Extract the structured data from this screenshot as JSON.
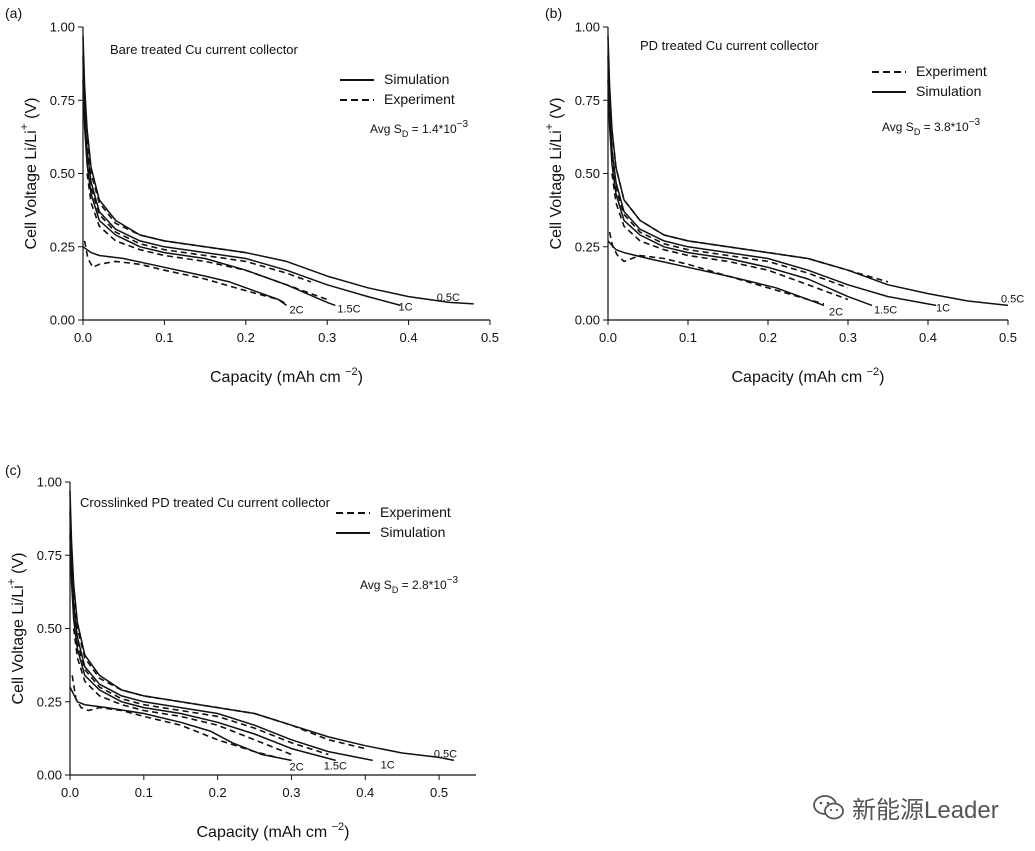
{
  "colors": {
    "line": "#111111",
    "watermark": "#555555"
  },
  "watermark": {
    "text": "新能源Leader",
    "icon": "wechat-icon"
  },
  "chart_data": [
    {
      "panel_label": "(a)",
      "type": "line",
      "title": "Bare treated Cu current collector",
      "xlabel": "Capacity (mAh cm",
      "xlabel_sup": "−2",
      "xlabel_end": ")",
      "ylabel": "Cell Voltage Li/Li",
      "ylabel_sup": "+",
      "ylabel_end": " (V)",
      "xlim": [
        0,
        0.5
      ],
      "ylim": [
        0,
        1.0
      ],
      "xticks": [
        "0.0",
        "0.1",
        "0.2",
        "0.3",
        "0.4",
        "0.5"
      ],
      "yticks": [
        "0.00",
        "0.25",
        "0.50",
        "0.75",
        "1.00"
      ],
      "legend": [
        {
          "name": "Simulation",
          "style": "solid"
        },
        {
          "name": "Experiment",
          "style": "dashed"
        }
      ],
      "annotation": {
        "prefix": "Avg S",
        "sub": "D",
        "mid": " = 1.4*10",
        "sup": "−3"
      },
      "series": [
        {
          "name": "0.5C simulation",
          "style": "solid",
          "label": "0.5C",
          "x": [
            0,
            0.002,
            0.005,
            0.01,
            0.02,
            0.04,
            0.07,
            0.1,
            0.15,
            0.2,
            0.25,
            0.3,
            0.35,
            0.4,
            0.45,
            0.48
          ],
          "y": [
            0.97,
            0.8,
            0.65,
            0.52,
            0.41,
            0.34,
            0.29,
            0.27,
            0.25,
            0.23,
            0.2,
            0.15,
            0.11,
            0.08,
            0.06,
            0.055
          ]
        },
        {
          "name": "0.5C experiment",
          "style": "dashed",
          "x": [
            0.005,
            0.01,
            0.02,
            0.04,
            0.07,
            0.1,
            0.15,
            0.2
          ],
          "y": [
            0.62,
            0.5,
            0.4,
            0.33,
            0.29,
            0.27,
            0.25,
            0.23
          ]
        },
        {
          "name": "1C simulation",
          "style": "solid",
          "label": "1C",
          "x": [
            0,
            0.002,
            0.005,
            0.01,
            0.02,
            0.04,
            0.07,
            0.1,
            0.15,
            0.2,
            0.25,
            0.3,
            0.35,
            0.39
          ],
          "y": [
            0.9,
            0.72,
            0.58,
            0.47,
            0.37,
            0.31,
            0.27,
            0.25,
            0.23,
            0.21,
            0.17,
            0.12,
            0.08,
            0.05
          ]
        },
        {
          "name": "1C experiment",
          "style": "dashed",
          "x": [
            0.005,
            0.01,
            0.02,
            0.04,
            0.07,
            0.1,
            0.15,
            0.2,
            0.25,
            0.28
          ],
          "y": [
            0.55,
            0.45,
            0.36,
            0.3,
            0.26,
            0.24,
            0.22,
            0.2,
            0.16,
            0.13
          ]
        },
        {
          "name": "1.5C simulation",
          "style": "solid",
          "label": "1.5C",
          "x": [
            0,
            0.002,
            0.005,
            0.01,
            0.02,
            0.04,
            0.07,
            0.1,
            0.15,
            0.2,
            0.25,
            0.3,
            0.31
          ],
          "y": [
            0.82,
            0.66,
            0.53,
            0.43,
            0.34,
            0.29,
            0.25,
            0.23,
            0.21,
            0.17,
            0.12,
            0.06,
            0.05
          ]
        },
        {
          "name": "1.5C experiment",
          "style": "dashed",
          "x": [
            0.005,
            0.01,
            0.02,
            0.04,
            0.07,
            0.1,
            0.15,
            0.2,
            0.25,
            0.3
          ],
          "y": [
            0.5,
            0.4,
            0.32,
            0.27,
            0.24,
            0.22,
            0.2,
            0.17,
            0.12,
            0.07
          ]
        },
        {
          "name": "2C simulation",
          "style": "solid",
          "label": "2C",
          "x": [
            0,
            0.01,
            0.02,
            0.05,
            0.1,
            0.15,
            0.18,
            0.21,
            0.24,
            0.25
          ],
          "y": [
            0.25,
            0.23,
            0.22,
            0.21,
            0.18,
            0.15,
            0.13,
            0.1,
            0.07,
            0.05
          ]
        },
        {
          "name": "2C experiment",
          "style": "dashed",
          "x": [
            0.002,
            0.006,
            0.012,
            0.02,
            0.04,
            0.07,
            0.1,
            0.15,
            0.2,
            0.24,
            0.25
          ],
          "y": [
            0.27,
            0.21,
            0.18,
            0.19,
            0.2,
            0.19,
            0.17,
            0.14,
            0.1,
            0.07,
            0.055
          ]
        }
      ]
    },
    {
      "panel_label": "(b)",
      "type": "line",
      "title": "PD treated Cu current collector",
      "xlabel": "Capacity (mAh cm",
      "xlabel_sup": "−2",
      "xlabel_end": ")",
      "ylabel": "Cell Voltage Li/Li",
      "ylabel_sup": "+",
      "ylabel_end": " (V)",
      "xlim": [
        0,
        0.5
      ],
      "ylim": [
        0,
        1.0
      ],
      "xticks": [
        "0.0",
        "0.1",
        "0.2",
        "0.3",
        "0.4",
        "0.5"
      ],
      "yticks": [
        "0.00",
        "0.25",
        "0.50",
        "0.75",
        "1.00"
      ],
      "legend": [
        {
          "name": "Experiment",
          "style": "dashed"
        },
        {
          "name": "Simulation",
          "style": "solid"
        }
      ],
      "annotation": {
        "prefix": "Avg S",
        "sub": "D",
        "mid": " = 3.8*10",
        "sup": "−3"
      },
      "series": [
        {
          "name": "0.5C simulation",
          "style": "solid",
          "label": "0.5C",
          "x": [
            0,
            0.002,
            0.005,
            0.01,
            0.02,
            0.04,
            0.07,
            0.1,
            0.15,
            0.2,
            0.25,
            0.3,
            0.35,
            0.4,
            0.45,
            0.5
          ],
          "y": [
            0.97,
            0.8,
            0.65,
            0.52,
            0.41,
            0.34,
            0.29,
            0.27,
            0.25,
            0.23,
            0.21,
            0.17,
            0.12,
            0.09,
            0.065,
            0.05
          ]
        },
        {
          "name": "0.5C experiment",
          "style": "dashed",
          "x": [
            0.005,
            0.01,
            0.02,
            0.04,
            0.07,
            0.1,
            0.15,
            0.2,
            0.25,
            0.3,
            0.35
          ],
          "y": [
            0.64,
            0.52,
            0.41,
            0.34,
            0.29,
            0.27,
            0.25,
            0.23,
            0.21,
            0.17,
            0.13
          ]
        },
        {
          "name": "1C simulation",
          "style": "solid",
          "label": "1C",
          "x": [
            0,
            0.002,
            0.005,
            0.01,
            0.02,
            0.04,
            0.07,
            0.1,
            0.15,
            0.2,
            0.25,
            0.3,
            0.35,
            0.41
          ],
          "y": [
            0.9,
            0.72,
            0.58,
            0.47,
            0.37,
            0.31,
            0.27,
            0.25,
            0.23,
            0.21,
            0.17,
            0.12,
            0.08,
            0.05
          ]
        },
        {
          "name": "1C experiment",
          "style": "dashed",
          "x": [
            0.005,
            0.01,
            0.02,
            0.04,
            0.07,
            0.1,
            0.15,
            0.2,
            0.25,
            0.3
          ],
          "y": [
            0.56,
            0.45,
            0.36,
            0.3,
            0.26,
            0.24,
            0.22,
            0.2,
            0.16,
            0.11
          ]
        },
        {
          "name": "1.5C simulation",
          "style": "solid",
          "label": "1.5C",
          "x": [
            0,
            0.002,
            0.005,
            0.01,
            0.02,
            0.04,
            0.07,
            0.1,
            0.15,
            0.2,
            0.25,
            0.3,
            0.33
          ],
          "y": [
            0.82,
            0.66,
            0.53,
            0.43,
            0.34,
            0.29,
            0.25,
            0.23,
            0.21,
            0.18,
            0.14,
            0.08,
            0.05
          ]
        },
        {
          "name": "1.5C experiment",
          "style": "dashed",
          "x": [
            0.005,
            0.01,
            0.02,
            0.04,
            0.07,
            0.1,
            0.15,
            0.2,
            0.25,
            0.3
          ],
          "y": [
            0.5,
            0.4,
            0.32,
            0.27,
            0.24,
            0.22,
            0.2,
            0.17,
            0.12,
            0.07
          ]
        },
        {
          "name": "2C simulation",
          "style": "solid",
          "label": "2C",
          "x": [
            0,
            0.01,
            0.02,
            0.05,
            0.1,
            0.15,
            0.18,
            0.21,
            0.24,
            0.27
          ],
          "y": [
            0.27,
            0.24,
            0.23,
            0.21,
            0.18,
            0.15,
            0.13,
            0.11,
            0.08,
            0.05
          ]
        },
        {
          "name": "2C experiment",
          "style": "dashed",
          "x": [
            0.002,
            0.006,
            0.012,
            0.02,
            0.03,
            0.04,
            0.07,
            0.1,
            0.15,
            0.2,
            0.25,
            0.27
          ],
          "y": [
            0.3,
            0.25,
            0.22,
            0.2,
            0.21,
            0.22,
            0.21,
            0.19,
            0.15,
            0.11,
            0.07,
            0.055
          ]
        }
      ]
    },
    {
      "panel_label": "(c)",
      "type": "line",
      "title": "Crosslinked PD treated Cu current collector",
      "xlabel": "Capacity (mAh cm",
      "xlabel_sup": "−2",
      "xlabel_end": ")",
      "ylabel": "Cell Voltage Li/Li",
      "ylabel_sup": "+",
      "ylabel_end": " (V)",
      "xlim": [
        0,
        0.55
      ],
      "ylim": [
        0,
        1.0
      ],
      "xticks": [
        "0.0",
        "0.1",
        "0.2",
        "0.3",
        "0.4",
        "0.5"
      ],
      "yticks": [
        "0.00",
        "0.25",
        "0.50",
        "0.75",
        "1.00"
      ],
      "legend": [
        {
          "name": "Experiment",
          "style": "dashed"
        },
        {
          "name": "Simulation",
          "style": "solid"
        }
      ],
      "annotation": {
        "prefix": "Avg S",
        "sub": "D",
        "mid": " = 2.8*10",
        "sup": "−3"
      },
      "series": [
        {
          "name": "0.5C simulation",
          "style": "solid",
          "label": "0.5C",
          "x": [
            0,
            0.002,
            0.005,
            0.01,
            0.02,
            0.04,
            0.07,
            0.1,
            0.15,
            0.2,
            0.25,
            0.3,
            0.35,
            0.4,
            0.45,
            0.5,
            0.52
          ],
          "y": [
            0.97,
            0.8,
            0.65,
            0.52,
            0.41,
            0.34,
            0.29,
            0.27,
            0.25,
            0.23,
            0.21,
            0.17,
            0.13,
            0.1,
            0.075,
            0.06,
            0.05
          ]
        },
        {
          "name": "0.5C experiment",
          "style": "dashed",
          "x": [
            0.005,
            0.01,
            0.02,
            0.04,
            0.07,
            0.1,
            0.15,
            0.2,
            0.25,
            0.3,
            0.35,
            0.4
          ],
          "y": [
            0.62,
            0.5,
            0.4,
            0.33,
            0.29,
            0.27,
            0.25,
            0.23,
            0.21,
            0.17,
            0.12,
            0.09
          ]
        },
        {
          "name": "1C simulation",
          "style": "solid",
          "label": "1C",
          "x": [
            0,
            0.002,
            0.005,
            0.01,
            0.02,
            0.04,
            0.07,
            0.1,
            0.15,
            0.2,
            0.25,
            0.3,
            0.35,
            0.41
          ],
          "y": [
            0.9,
            0.72,
            0.58,
            0.47,
            0.37,
            0.31,
            0.27,
            0.25,
            0.23,
            0.21,
            0.17,
            0.12,
            0.08,
            0.05
          ]
        },
        {
          "name": "1C experiment",
          "style": "dashed",
          "x": [
            0.005,
            0.01,
            0.02,
            0.04,
            0.07,
            0.1,
            0.15,
            0.2,
            0.25,
            0.3,
            0.35
          ],
          "y": [
            0.56,
            0.45,
            0.36,
            0.3,
            0.26,
            0.24,
            0.22,
            0.2,
            0.16,
            0.11,
            0.07
          ]
        },
        {
          "name": "1.5C simulation",
          "style": "solid",
          "label": "1.5C",
          "x": [
            0,
            0.002,
            0.005,
            0.01,
            0.02,
            0.04,
            0.07,
            0.1,
            0.15,
            0.2,
            0.25,
            0.3,
            0.36
          ],
          "y": [
            0.82,
            0.66,
            0.53,
            0.43,
            0.34,
            0.29,
            0.25,
            0.23,
            0.21,
            0.18,
            0.14,
            0.09,
            0.05
          ]
        },
        {
          "name": "1.5C experiment",
          "style": "dashed",
          "x": [
            0.005,
            0.01,
            0.02,
            0.04,
            0.07,
            0.1,
            0.15,
            0.2,
            0.25,
            0.3
          ],
          "y": [
            0.5,
            0.4,
            0.32,
            0.27,
            0.24,
            0.22,
            0.2,
            0.17,
            0.12,
            0.07
          ]
        },
        {
          "name": "2C simulation",
          "style": "solid",
          "label": "2C",
          "x": [
            0,
            0.01,
            0.02,
            0.05,
            0.1,
            0.15,
            0.19,
            0.22,
            0.26,
            0.3
          ],
          "y": [
            0.3,
            0.25,
            0.24,
            0.23,
            0.21,
            0.18,
            0.15,
            0.11,
            0.07,
            0.05
          ]
        },
        {
          "name": "2C experiment",
          "style": "dashed",
          "x": [
            0.003,
            0.008,
            0.015,
            0.025,
            0.04,
            0.07,
            0.1,
            0.15,
            0.2,
            0.25,
            0.28
          ],
          "y": [
            0.34,
            0.26,
            0.23,
            0.22,
            0.23,
            0.22,
            0.2,
            0.17,
            0.12,
            0.08,
            0.06
          ]
        }
      ]
    }
  ]
}
